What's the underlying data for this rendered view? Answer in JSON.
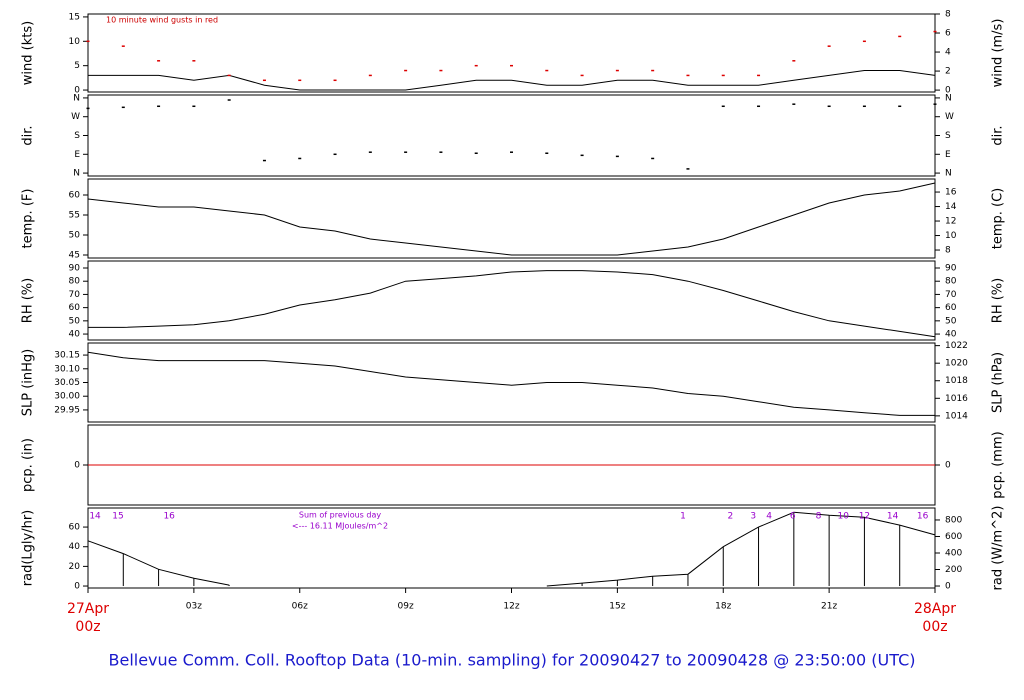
{
  "title": "Bellevue Comm. Coll. Rooftop Data (10-min. sampling) for 20090427  to  20090428 @ 23:50:00  (UTC)",
  "chart_data": [
    {
      "type": "line",
      "ylabel": "wind (kts)",
      "y2label": "wind (m/s)",
      "annotation": "10  minute wind gusts in red",
      "ylim": [
        -0.4,
        15.6
      ],
      "yticks": [
        0,
        5,
        10,
        15
      ],
      "y2lim": [
        -0.2,
        8.0
      ],
      "y2ticks": [
        0,
        2,
        4,
        6,
        8
      ],
      "series": [
        {
          "style": "line",
          "color": "#000000",
          "values": [
            3,
            3,
            3,
            2,
            3,
            1,
            0,
            0,
            0,
            0,
            1,
            2,
            2,
            1,
            1,
            2,
            2,
            1,
            1,
            1,
            2,
            3,
            4,
            4,
            3
          ]
        },
        {
          "style": "points",
          "color": "#dd0000",
          "values": [
            10,
            9,
            6,
            6,
            3,
            2,
            2,
            2,
            3,
            4,
            4,
            5,
            5,
            4,
            3,
            4,
            4,
            3,
            3,
            3,
            6,
            9,
            10,
            11,
            12
          ]
        }
      ]
    },
    {
      "type": "scatter",
      "ylabel": "dir.",
      "y2label": "dir.",
      "ylim": [
        -14,
        374
      ],
      "yticks": [
        {
          "value": 0,
          "label": "N"
        },
        {
          "value": 90,
          "label": "E"
        },
        {
          "value": 180,
          "label": "S"
        },
        {
          "value": 270,
          "label": "W"
        },
        {
          "value": 360,
          "label": "N"
        }
      ],
      "y2lim": [
        -14,
        374
      ],
      "y2ticks": [
        {
          "value": 0,
          "label": "N"
        },
        {
          "value": 90,
          "label": "E"
        },
        {
          "value": 180,
          "label": "S"
        },
        {
          "value": 270,
          "label": "W"
        },
        {
          "value": 360,
          "label": "N"
        }
      ],
      "series": [
        {
          "style": "points",
          "color": "#000000",
          "values": [
            310,
            315,
            320,
            320,
            350,
            60,
            70,
            90,
            100,
            100,
            100,
            95,
            100,
            95,
            85,
            80,
            70,
            20,
            320,
            320,
            330,
            320,
            320,
            320,
            330
          ]
        }
      ]
    },
    {
      "type": "line",
      "ylabel": "temp. (F)",
      "y2label": "temp. (C)",
      "ylim": [
        44.25,
        64
      ],
      "yticks": [
        45,
        50,
        55,
        60
      ],
      "y2lim": [
        6.9,
        17.8
      ],
      "y2ticks": [
        8,
        10,
        12,
        14,
        16
      ],
      "series": [
        {
          "style": "line",
          "color": "#000000",
          "values": [
            59,
            58,
            57,
            57,
            56,
            55,
            52,
            51,
            49,
            48,
            47,
            46,
            45,
            45,
            45,
            45,
            46,
            47,
            49,
            52,
            55,
            58,
            60,
            61,
            63
          ]
        }
      ]
    },
    {
      "type": "line",
      "ylabel": "RH (%)",
      "y2label": "RH (%)",
      "ylim": [
        35.5,
        95.3
      ],
      "yticks": [
        40,
        50,
        60,
        70,
        80,
        90
      ],
      "y2lim": [
        35.5,
        95.3
      ],
      "y2ticks": [
        40,
        50,
        60,
        70,
        80,
        90
      ],
      "series": [
        {
          "style": "line",
          "color": "#000000",
          "values": [
            45,
            45,
            46,
            47,
            50,
            55,
            62,
            66,
            71,
            80,
            82,
            84,
            87,
            88,
            88,
            87,
            85,
            80,
            73,
            65,
            57,
            50,
            46,
            42,
            38
          ]
        }
      ]
    },
    {
      "type": "line",
      "ylabel": "SLP (inHg)",
      "y2label": "SLP (hPa)",
      "ylim": [
        29.906,
        30.194
      ],
      "yticks": [
        {
          "value": 29.95,
          "label": "29.95"
        },
        {
          "value": 30,
          "label": "30.00"
        },
        {
          "value": 30.05,
          "label": "30.05"
        },
        {
          "value": 30.1,
          "label": "30.10"
        },
        {
          "value": 30.15,
          "label": "30.15"
        }
      ],
      "y2lim": [
        1013.3,
        1022.3
      ],
      "y2ticks": [
        1014,
        1016,
        1018,
        1020,
        1022
      ],
      "series": [
        {
          "style": "line",
          "color": "#000000",
          "values": [
            30.16,
            30.14,
            30.13,
            30.13,
            30.13,
            30.13,
            30.12,
            30.11,
            30.09,
            30.07,
            30.06,
            30.05,
            30.04,
            30.05,
            30.05,
            30.04,
            30.03,
            30.01,
            30.0,
            29.98,
            29.96,
            29.95,
            29.94,
            29.93,
            29.93
          ]
        }
      ]
    },
    {
      "type": "line",
      "ylabel": "pcp. (in)",
      "y2label": "pcp. (mm)",
      "ylim": [
        -1,
        1
      ],
      "yticks": [
        0
      ],
      "y2lim": [
        -1,
        1
      ],
      "y2ticks": [
        0
      ],
      "series": [
        {
          "style": "line",
          "color": "#dd0000",
          "values": [
            0,
            0,
            0,
            0,
            0,
            0,
            0,
            0,
            0,
            0,
            0,
            0,
            0,
            0,
            0,
            0,
            0,
            0,
            0,
            0,
            0,
            0,
            0,
            0,
            0
          ]
        }
      ]
    },
    {
      "type": "line",
      "ylabel": "rad(Lgly/hr)",
      "y2label": "rad (W/m^2)",
      "notes": [
        "Sum of previous day",
        "<--- 16.11 MJoules/m^2"
      ],
      "hour_marks": [
        {
          "x": 0.2,
          "label": 14
        },
        {
          "x": 0.85,
          "label": 15
        },
        {
          "x": 2.3,
          "label": 16
        },
        {
          "x": 16.86,
          "label": 1
        },
        {
          "x": 18.2,
          "label": 2
        },
        {
          "x": 18.85,
          "label": 3
        },
        {
          "x": 19.3,
          "label": 4
        },
        {
          "x": 19.97,
          "label": 6
        },
        {
          "x": 20.7,
          "label": 8
        },
        {
          "x": 21.4,
          "label": 10
        },
        {
          "x": 22.0,
          "label": 12
        },
        {
          "x": 22.8,
          "label": 14
        },
        {
          "x": 23.65,
          "label": 16
        }
      ],
      "ylim": [
        -2,
        79.4
      ],
      "yticks": [
        0,
        20,
        40,
        60
      ],
      "y2lim": [
        -24,
        945
      ],
      "y2ticks": [
        0,
        200,
        400,
        600,
        800
      ],
      "x": [
        0,
        1,
        2,
        3,
        4,
        5,
        6,
        7,
        8,
        9,
        10,
        11,
        12,
        13,
        14,
        15,
        16,
        17,
        18,
        19,
        20,
        21,
        22,
        23,
        24
      ],
      "xlim": [
        0,
        24
      ],
      "xticks": [
        {
          "value": 0,
          "label": "00z"
        },
        {
          "value": 3,
          "label": "03z"
        },
        {
          "value": 6,
          "label": "06z"
        },
        {
          "value": 9,
          "label": "09z"
        },
        {
          "value": 12,
          "label": "12z"
        },
        {
          "value": 15,
          "label": "15z"
        },
        {
          "value": 18,
          "label": "18z"
        },
        {
          "value": 21,
          "label": "21z"
        },
        {
          "value": 24,
          "label": "00z"
        }
      ],
      "start_date": "27Apr",
      "end_date": "28Apr",
      "series": [
        {
          "style": "hatch",
          "color": "#000000",
          "values": [
            46,
            33,
            17,
            8,
            1,
            null,
            null,
            null,
            null,
            null,
            null,
            null,
            null,
            0,
            3,
            6,
            10,
            12,
            40,
            60,
            75,
            72,
            70,
            62,
            52
          ]
        }
      ]
    }
  ]
}
